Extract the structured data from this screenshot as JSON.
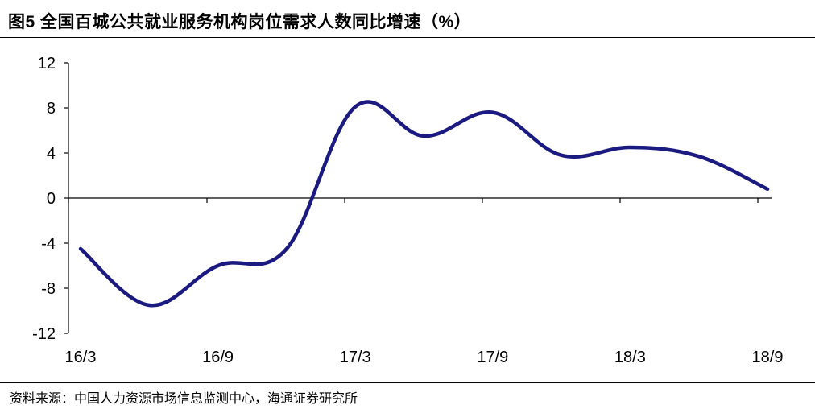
{
  "header": {
    "title": "图5 全国百城公共就业服务机构岗位需求人数同比增速（%）"
  },
  "footer": {
    "source": "资料来源：中国人力资源市场信息监测中心，海通证券研究所"
  },
  "colors": {
    "line": "#1a1a80",
    "axis": "#000000"
  },
  "chart_data": {
    "type": "line",
    "title": "图5 全国百城公共就业服务机构岗位需求人数同比增速（%）",
    "xlabel": "",
    "ylabel": "",
    "ylim": [
      -12,
      12
    ],
    "yticks": [
      12,
      8,
      4,
      0,
      -4,
      -8,
      -12
    ],
    "grid": false,
    "legend": "none",
    "xtick_labels": [
      "16/3",
      "16/9",
      "17/3",
      "17/9",
      "18/3",
      "18/9"
    ],
    "x": [
      "2016-03",
      "2016-06",
      "2016-09",
      "2016-12",
      "2017-03",
      "2017-06",
      "2017-09",
      "2017-12",
      "2018-03",
      "2018-06",
      "2018-09"
    ],
    "values": [
      -4.5,
      -9.5,
      -6.0,
      -4.5,
      8.1,
      5.5,
      7.6,
      3.8,
      4.5,
      3.7,
      0.8
    ]
  }
}
